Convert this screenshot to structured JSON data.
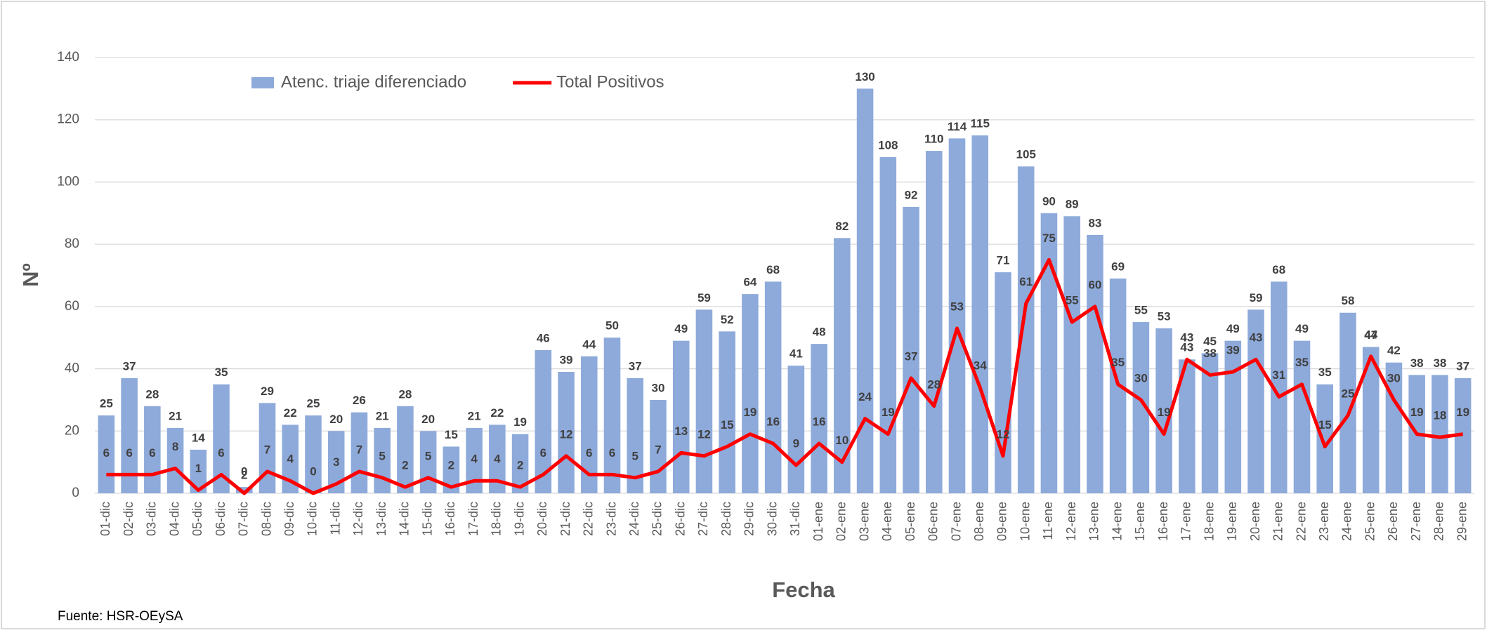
{
  "chart_data": {
    "type": "bar",
    "source": "Fuente: HSR-OEySA",
    "xlabel": "Fecha",
    "ylabel": "Nº",
    "categories": [
      "01-dic",
      "02-dic",
      "03-dic",
      "04-dic",
      "05-dic",
      "06-dic",
      "07-dic",
      "08-dic",
      "09-dic",
      "10-dic",
      "11-dic",
      "12-dic",
      "13-dic",
      "14-dic",
      "15-dic",
      "16-dic",
      "17-dic",
      "18-dic",
      "19-dic",
      "20-dic",
      "21-dic",
      "22-dic",
      "23-dic",
      "24-dic",
      "25-dic",
      "26-dic",
      "27-dic",
      "28-dic",
      "29-dic",
      "30-dic",
      "31-dic",
      "01-ene",
      "02-ene",
      "03-ene",
      "04-ene",
      "05-ene",
      "06-ene",
      "07-ene",
      "08-ene",
      "09-ene",
      "10-ene",
      "11-ene",
      "12-ene",
      "13-ene",
      "14-ene",
      "15-ene",
      "16-ene",
      "17-ene",
      "18-ene",
      "19-ene",
      "20-ene",
      "21-ene",
      "22-ene",
      "23-ene",
      "24-ene",
      "25-ene",
      "26-ene",
      "27-ene",
      "28-ene",
      "29-ene"
    ],
    "series": [
      {
        "name": "Atenc. triaje diferenciado",
        "type": "bar",
        "color": "#8eaadb",
        "values": [
          25,
          37,
          28,
          21,
          14,
          35,
          2,
          29,
          22,
          25,
          20,
          26,
          21,
          28,
          20,
          15,
          21,
          22,
          19,
          46,
          39,
          44,
          50,
          37,
          30,
          49,
          59,
          52,
          64,
          68,
          41,
          48,
          82,
          130,
          108,
          92,
          110,
          114,
          115,
          71,
          105,
          90,
          89,
          83,
          69,
          55,
          53,
          43,
          45,
          49,
          59,
          68,
          49,
          35,
          58,
          47,
          42,
          38,
          38,
          37
        ]
      },
      {
        "name": "Total Positivos",
        "type": "line",
        "color": "#ff0000",
        "values": [
          6,
          6,
          6,
          8,
          1,
          6,
          0,
          7,
          4,
          0,
          3,
          7,
          5,
          2,
          5,
          2,
          4,
          4,
          2,
          6,
          12,
          6,
          6,
          5,
          7,
          13,
          12,
          15,
          19,
          16,
          9,
          16,
          10,
          24,
          19,
          37,
          28,
          53,
          34,
          12,
          61,
          75,
          55,
          60,
          35,
          30,
          19,
          43,
          38,
          39,
          43,
          31,
          35,
          15,
          25,
          44,
          30,
          19,
          18,
          19
        ]
      }
    ],
    "ylim": [
      0,
      140
    ],
    "yticks": [
      0,
      20,
      40,
      60,
      80,
      100,
      120,
      140
    ],
    "grid": true,
    "legend": "top-left"
  }
}
